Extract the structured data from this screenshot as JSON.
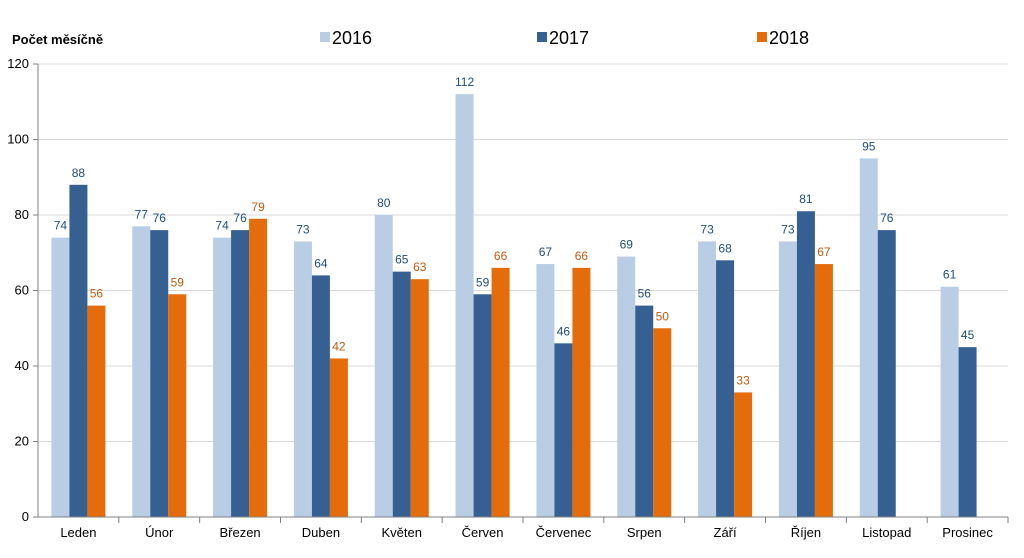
{
  "chart_data": {
    "type": "bar",
    "title": "",
    "ylabel": "Počet měsíčně",
    "xlabel": "",
    "ylim": [
      0,
      120
    ],
    "yticks": [
      0,
      20,
      40,
      60,
      80,
      100,
      120
    ],
    "grid": true,
    "legend_position": "top",
    "categories": [
      "Leden",
      "Únor",
      "Březen",
      "Duben",
      "Květen",
      "Červen",
      "Červenec",
      "Srpen",
      "Září",
      "Říjen",
      "Listopad",
      "Prosinec"
    ],
    "series": [
      {
        "name": "2016",
        "color": "#b9cde5",
        "label_color": "#1f4e79",
        "values": [
          74,
          77,
          74,
          73,
          80,
          112,
          67,
          69,
          73,
          73,
          95,
          61
        ]
      },
      {
        "name": "2017",
        "color": "#376092",
        "label_color": "#1f4e79",
        "values": [
          88,
          76,
          76,
          64,
          65,
          59,
          46,
          56,
          68,
          81,
          76,
          45
        ]
      },
      {
        "name": "2018",
        "color": "#e46c0a",
        "label_color": "#c55a11",
        "values": [
          56,
          59,
          79,
          42,
          63,
          66,
          66,
          50,
          33,
          67,
          null,
          null
        ]
      }
    ]
  }
}
